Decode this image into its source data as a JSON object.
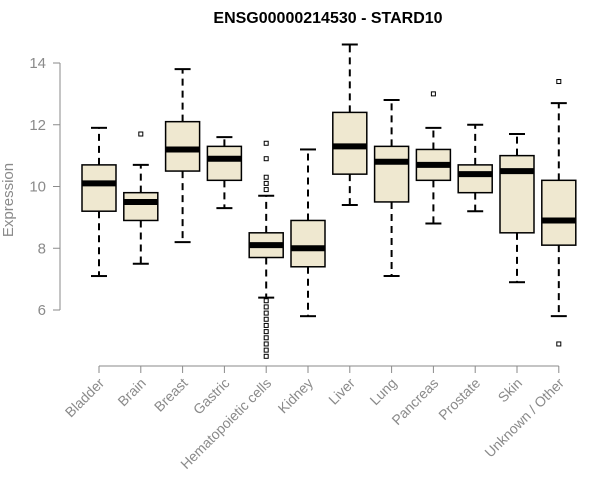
{
  "chart_data": {
    "type": "boxplot",
    "title": "ENSG00000214530 - STARD10",
    "xlabel": "",
    "ylabel": "Expression",
    "ylim": [
      4.4,
      14.7
    ],
    "yticks": [
      6,
      8,
      10,
      12,
      14
    ],
    "box_fill": "#efe8d0",
    "categories": [
      "Bladder",
      "Brain",
      "Breast",
      "Gastric",
      "Hematopoietic cells",
      "Kidney",
      "Liver",
      "Lung",
      "Pancreas",
      "Prostate",
      "Skin",
      "Unknown / Other"
    ],
    "boxes": [
      {
        "whisker_low": 7.1,
        "q1": 9.2,
        "median": 10.1,
        "q3": 10.7,
        "whisker_high": 11.9,
        "outliers": []
      },
      {
        "whisker_low": 7.5,
        "q1": 8.9,
        "median": 9.5,
        "q3": 9.8,
        "whisker_high": 10.7,
        "outliers": [
          11.7
        ]
      },
      {
        "whisker_low": 8.2,
        "q1": 10.5,
        "median": 11.2,
        "q3": 12.1,
        "whisker_high": 13.8,
        "outliers": []
      },
      {
        "whisker_low": 9.3,
        "q1": 10.2,
        "median": 10.9,
        "q3": 11.3,
        "whisker_high": 11.6,
        "outliers": []
      },
      {
        "whisker_low": 6.4,
        "q1": 7.7,
        "median": 8.1,
        "q3": 8.5,
        "whisker_high": 9.7,
        "outliers": [
          11.4,
          10.9,
          10.3,
          10.1,
          9.9,
          6.3,
          6.1,
          5.9,
          5.7,
          5.5,
          5.3,
          5.1,
          4.9,
          4.7,
          4.5
        ]
      },
      {
        "whisker_low": 5.8,
        "q1": 7.4,
        "median": 8.0,
        "q3": 8.9,
        "whisker_high": 11.2,
        "outliers": []
      },
      {
        "whisker_low": 9.4,
        "q1": 10.4,
        "median": 11.3,
        "q3": 12.4,
        "whisker_high": 14.6,
        "outliers": []
      },
      {
        "whisker_low": 7.1,
        "q1": 9.5,
        "median": 10.8,
        "q3": 11.3,
        "whisker_high": 12.8,
        "outliers": []
      },
      {
        "whisker_low": 8.8,
        "q1": 10.2,
        "median": 10.7,
        "q3": 11.2,
        "whisker_high": 11.9,
        "outliers": [
          13.0
        ]
      },
      {
        "whisker_low": 9.2,
        "q1": 9.8,
        "median": 10.4,
        "q3": 10.7,
        "whisker_high": 12.0,
        "outliers": []
      },
      {
        "whisker_low": 6.9,
        "q1": 8.5,
        "median": 10.5,
        "q3": 11.0,
        "whisker_high": 11.7,
        "outliers": []
      },
      {
        "whisker_low": 5.8,
        "q1": 8.1,
        "median": 8.9,
        "q3": 10.2,
        "whisker_high": 12.7,
        "outliers": [
          13.4,
          4.9
        ]
      }
    ]
  }
}
